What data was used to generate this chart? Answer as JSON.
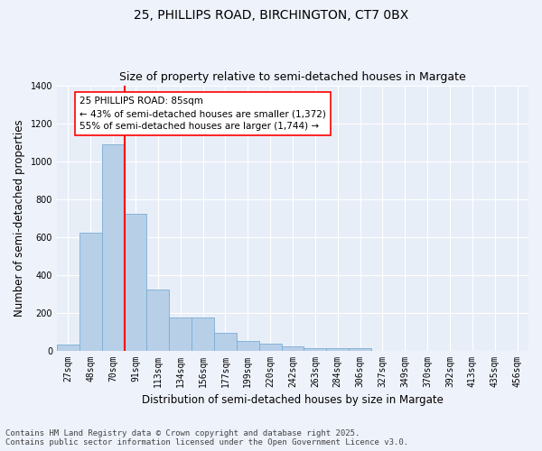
{
  "title_line1": "25, PHILLIPS ROAD, BIRCHINGTON, CT7 0BX",
  "title_line2": "Size of property relative to semi-detached houses in Margate",
  "xlabel": "Distribution of semi-detached houses by size in Margate",
  "ylabel": "Number of semi-detached properties",
  "categories": [
    "27sqm",
    "48sqm",
    "70sqm",
    "91sqm",
    "113sqm",
    "134sqm",
    "156sqm",
    "177sqm",
    "199sqm",
    "220sqm",
    "242sqm",
    "263sqm",
    "284sqm",
    "306sqm",
    "327sqm",
    "349sqm",
    "370sqm",
    "392sqm",
    "413sqm",
    "435sqm",
    "456sqm"
  ],
  "values": [
    30,
    620,
    1090,
    720,
    320,
    175,
    175,
    95,
    50,
    35,
    20,
    10,
    10,
    10,
    0,
    0,
    0,
    0,
    0,
    0,
    0
  ],
  "bar_color": "#b8cfe8",
  "bar_edge_color": "#7aadd4",
  "red_line_x": 2.5,
  "annotation_text": "25 PHILLIPS ROAD: 85sqm\n← 43% of semi-detached houses are smaller (1,372)\n55% of semi-detached houses are larger (1,744) →",
  "ylim": [
    0,
    1400
  ],
  "yticks": [
    0,
    200,
    400,
    600,
    800,
    1000,
    1200,
    1400
  ],
  "footnote_line1": "Contains HM Land Registry data © Crown copyright and database right 2025.",
  "footnote_line2": "Contains public sector information licensed under the Open Government Licence v3.0.",
  "bg_color": "#eef2fb",
  "plot_bg_color": "#e8eef8",
  "grid_color": "#d8dff0",
  "title_fontsize": 10,
  "subtitle_fontsize": 9,
  "axis_label_fontsize": 8.5,
  "tick_fontsize": 7,
  "footnote_fontsize": 6.5,
  "annot_fontsize": 7.5
}
